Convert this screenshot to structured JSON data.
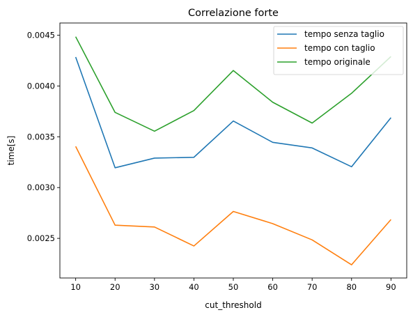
{
  "chart_data": {
    "type": "line",
    "title": "Correlazione forte",
    "xlabel": "cut_threshold",
    "ylabel": "time[s]",
    "x": [
      10,
      20,
      30,
      40,
      50,
      60,
      70,
      80,
      90
    ],
    "xticks": [
      "10",
      "20",
      "30",
      "40",
      "50",
      "60",
      "70",
      "80",
      "90"
    ],
    "yticks": [
      0.0025,
      0.003,
      0.0035,
      0.004,
      0.0045
    ],
    "ytick_labels": [
      "0.0025",
      "0.0030",
      "0.0035",
      "0.0040",
      "0.0045"
    ],
    "xlim": [
      6,
      94
    ],
    "ylim": [
      0.00211,
      0.00462
    ],
    "grid": false,
    "legend_position": "upper-right",
    "series": [
      {
        "name": "tempo senza taglio",
        "color": "#1f77b4",
        "values": [
          0.004285,
          0.003195,
          0.00329,
          0.003298,
          0.003655,
          0.003445,
          0.00339,
          0.003205,
          0.003688
        ]
      },
      {
        "name": "tempo con taglio",
        "color": "#ff7f0e",
        "values": [
          0.003405,
          0.00263,
          0.002612,
          0.002425,
          0.002765,
          0.002645,
          0.002485,
          0.00224,
          0.002685
        ]
      },
      {
        "name": "tempo originale",
        "color": "#2ca02c",
        "values": [
          0.004485,
          0.00374,
          0.003555,
          0.003758,
          0.004152,
          0.00384,
          0.003635,
          0.003928,
          0.00429
        ]
      }
    ]
  }
}
